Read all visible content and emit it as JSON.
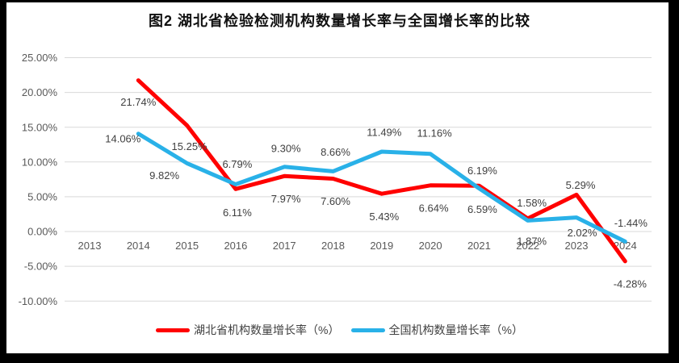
{
  "title": "图2  湖北省检验检测机构数量增长率与全国增长率的比较",
  "chart_data": {
    "type": "line",
    "title": "图2  湖北省检验检测机构数量增长率与全国增长率的比较",
    "categories": [
      "2013",
      "2014",
      "2015",
      "2016",
      "2017",
      "2018",
      "2019",
      "2020",
      "2021",
      "2022",
      "2023",
      "2024"
    ],
    "series": [
      {
        "name": "湖北省机构数量增长率（%）",
        "color": "#ff0000",
        "values": [
          null,
          21.74,
          15.25,
          6.11,
          7.97,
          7.6,
          5.43,
          6.64,
          6.59,
          1.87,
          5.29,
          -4.28
        ],
        "labels": [
          "",
          "21.74%",
          "15.25%",
          "6.11%",
          "7.97%",
          "7.60%",
          "5.43%",
          "6.64%",
          "6.59%",
          "1.87%",
          "5.29%",
          "-4.28%"
        ]
      },
      {
        "name": "全国机构数量增长率（%）",
        "color": "#29b1e8",
        "values": [
          null,
          14.06,
          9.82,
          6.79,
          9.3,
          8.66,
          11.49,
          11.16,
          6.19,
          1.58,
          2.02,
          -1.44
        ],
        "labels": [
          "",
          "14.06%",
          "9.82%",
          "6.79%",
          "9.30%",
          "8.66%",
          "11.49%",
          "11.16%",
          "6.19%",
          "1.58%",
          "2.02%",
          "-1.44%"
        ]
      }
    ],
    "yticks": [
      {
        "value": 25,
        "label": "25.00%"
      },
      {
        "value": 20,
        "label": "20.00%"
      },
      {
        "value": 15,
        "label": "15.00%"
      },
      {
        "value": 10,
        "label": "10.00%"
      },
      {
        "value": 5,
        "label": "5.00%"
      },
      {
        "value": 0,
        "label": "0.00%"
      },
      {
        "value": -5,
        "label": "-5.00%"
      },
      {
        "value": -10,
        "label": "-10.00%"
      }
    ],
    "ylim": [
      -10,
      25
    ],
    "grid": "horizontal",
    "legend_position": "bottom",
    "label_offsets": [
      [
        null,
        [
          0,
          27
        ],
        [
          3,
          26
        ],
        [
          2,
          29
        ],
        [
          2,
          28
        ],
        [
          3,
          28
        ],
        [
          3,
          28
        ],
        [
          4,
          28
        ],
        [
          4,
          29
        ],
        [
          5,
          28
        ],
        [
          5,
          -12
        ],
        [
          6,
          28
        ]
      ],
      [
        null,
        [
          -19,
          6
        ],
        [
          -28,
          15
        ],
        [
          2,
          -25
        ],
        [
          2,
          -23
        ],
        [
          3,
          -24
        ],
        [
          3,
          -24
        ],
        [
          5,
          -26
        ],
        [
          4,
          -22
        ],
        [
          5,
          -22
        ],
        [
          7,
          19
        ],
        [
          7,
          -23
        ]
      ]
    ]
  }
}
